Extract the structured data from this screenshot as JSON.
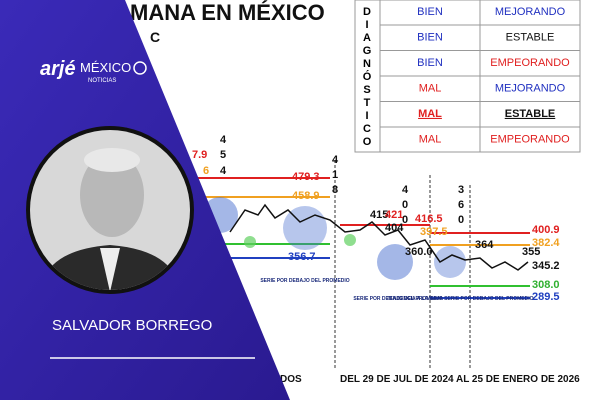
{
  "header": {
    "title": "MANA EN MÉXICO",
    "subtitle": "C"
  },
  "table": {
    "side_label": [
      "D",
      "I",
      "A",
      "G",
      "N",
      "Ó",
      "S",
      "T",
      "I",
      "C",
      "O"
    ],
    "rows": [
      [
        "BIEN",
        "MEJORANDO"
      ],
      [
        "BIEN",
        "ESTABLE"
      ],
      [
        "BIEN",
        "EMPEORANDO"
      ],
      [
        "MAL",
        "MEJORANDO"
      ],
      [
        "MAL",
        "ESTABLE"
      ],
      [
        "MAL",
        "EMPEORANDO"
      ]
    ]
  },
  "chart_labels": [
    "7.9",
    "6",
    "4",
    "5",
    "4",
    "479.3",
    "458.9",
    "4",
    "1",
    "8",
    "356.7",
    "4",
    "0",
    "0",
    "415",
    "421",
    "404",
    "416.5",
    "397.5",
    "360.0",
    "3",
    "6",
    "0",
    "364",
    "355",
    "400.9",
    "382.4",
    "345.2",
    "308.0",
    "289.5"
  ],
  "annotations": [
    "SERIE POR DEBAJO DEL PROMEDIO",
    "SERIE POR DEBAJO DEL PROMEDIO",
    "TENDENCIA A LA BAJA SERIE POR DEBAJO DEL PROMEDIO"
  ],
  "footer": {
    "left": "DIDOS",
    "range": "DEL 29 DE JUL DE 2024 AL 25 DE ENERO DE 2026"
  },
  "brand": {
    "name": "arjé",
    "country": "MÉXICO",
    "sub": "NOTICIAS"
  },
  "person": {
    "name": "SALVADOR BORREGO"
  }
}
